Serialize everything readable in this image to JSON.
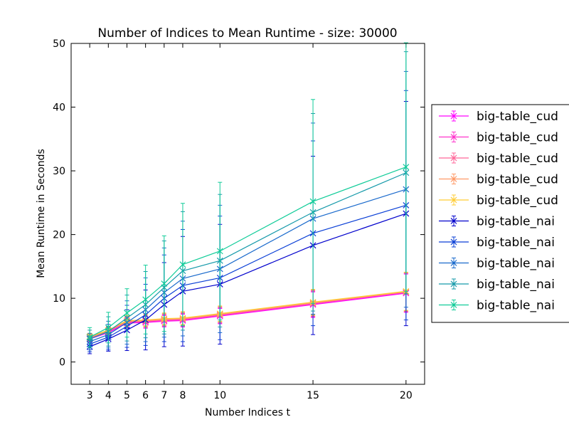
{
  "chart_data": {
    "type": "line",
    "title": "Number of Indices to Mean Runtime - size: 30000",
    "xlabel": "Number Indices t",
    "ylabel": "Mean Runtime in Seconds",
    "xlim": [
      2,
      21
    ],
    "ylim": [
      -3.5,
      50
    ],
    "x_ticks": [
      3,
      4,
      5,
      6,
      7,
      8,
      10,
      15,
      20
    ],
    "y_ticks": [
      0,
      10,
      20,
      30,
      40,
      50
    ],
    "x": [
      3,
      4,
      5,
      6,
      7,
      8,
      10,
      15,
      20
    ],
    "marker": "x",
    "grid": false,
    "legend_position": "right-outside",
    "series": [
      {
        "name": "big-table_cud",
        "color": "#ff00ff",
        "values": [
          3.6,
          4.6,
          6.1,
          6.2,
          6.4,
          6.5,
          7.2,
          9.0,
          10.8
        ],
        "err_low": [
          0.5,
          0.6,
          0.8,
          0.9,
          0.9,
          1.0,
          1.2,
          2.0,
          3.0
        ],
        "err_high": [
          0.5,
          0.6,
          0.8,
          0.9,
          0.9,
          1.0,
          1.2,
          2.0,
          3.0
        ]
      },
      {
        "name": "big-table_cud",
        "color": "#ff33cc",
        "values": [
          3.7,
          4.7,
          6.2,
          6.3,
          6.5,
          6.6,
          7.3,
          9.1,
          10.9
        ],
        "err_low": [
          0.5,
          0.6,
          0.8,
          0.9,
          0.9,
          1.0,
          1.2,
          2.0,
          3.0
        ],
        "err_high": [
          0.5,
          0.6,
          0.8,
          0.9,
          0.9,
          1.0,
          1.2,
          2.0,
          3.0
        ]
      },
      {
        "name": "big-table_cud",
        "color": "#ff6699",
        "values": [
          3.8,
          4.8,
          6.3,
          6.4,
          6.6,
          6.7,
          7.4,
          9.2,
          11.0
        ],
        "err_low": [
          0.5,
          0.6,
          0.8,
          0.9,
          0.9,
          1.0,
          1.2,
          2.0,
          3.0
        ],
        "err_high": [
          0.5,
          0.6,
          0.8,
          0.9,
          0.9,
          1.0,
          1.2,
          2.0,
          3.0
        ]
      },
      {
        "name": "big-table_cud",
        "color": "#ff9966",
        "values": [
          3.9,
          4.9,
          6.4,
          6.5,
          6.7,
          6.8,
          7.5,
          9.3,
          11.0
        ],
        "err_low": [
          0.5,
          0.6,
          0.8,
          0.9,
          0.9,
          1.0,
          1.2,
          2.0,
          3.0
        ],
        "err_high": [
          0.5,
          0.6,
          0.8,
          0.9,
          0.9,
          1.0,
          1.2,
          2.0,
          3.0
        ]
      },
      {
        "name": "big-table_cud",
        "color": "#ffcc33",
        "values": [
          4.0,
          5.0,
          6.5,
          6.6,
          6.8,
          6.9,
          7.6,
          9.4,
          11.1
        ],
        "err_low": [
          0.5,
          0.6,
          0.8,
          0.9,
          0.9,
          1.0,
          1.2,
          2.0,
          3.0
        ],
        "err_high": [
          0.5,
          0.6,
          0.8,
          0.9,
          0.9,
          1.0,
          1.2,
          2.0,
          3.0
        ]
      },
      {
        "name": "big-table_nai",
        "color": "#0000cc",
        "values": [
          2.4,
          3.6,
          5.0,
          6.6,
          9.0,
          11.1,
          12.2,
          18.3,
          23.3
        ],
        "err_low": [
          1.1,
          1.9,
          3.2,
          4.7,
          6.6,
          8.6,
          9.4,
          14.0,
          17.6
        ],
        "err_high": [
          1.1,
          1.9,
          3.2,
          4.7,
          6.6,
          8.6,
          9.4,
          14.0,
          17.6
        ]
      },
      {
        "name": "big-table_nai",
        "color": "#0a3fd6",
        "values": [
          2.8,
          3.9,
          5.6,
          7.4,
          10.0,
          12.0,
          13.2,
          20.2,
          24.6
        ],
        "err_low": [
          1.2,
          2.0,
          3.3,
          4.8,
          6.8,
          8.8,
          9.7,
          14.5,
          18.0
        ],
        "err_high": [
          1.2,
          2.0,
          3.3,
          4.8,
          6.8,
          8.8,
          9.7,
          14.5,
          18.0
        ]
      },
      {
        "name": "big-table_nai",
        "color": "#1a6acc",
        "values": [
          3.2,
          4.3,
          6.2,
          8.2,
          10.9,
          13.1,
          14.6,
          22.5,
          27.1
        ],
        "err_low": [
          1.3,
          2.1,
          3.4,
          5.0,
          7.0,
          9.0,
          10.0,
          15.0,
          18.5
        ],
        "err_high": [
          1.3,
          2.1,
          3.4,
          5.0,
          7.0,
          9.0,
          10.0,
          15.0,
          18.5
        ]
      },
      {
        "name": "big-table_nai",
        "color": "#169aaa",
        "values": [
          3.6,
          4.8,
          6.9,
          9.0,
          11.7,
          14.3,
          15.9,
          23.5,
          29.7
        ],
        "err_low": [
          1.4,
          2.3,
          3.6,
          5.2,
          7.3,
          9.3,
          10.4,
          15.5,
          19.0
        ],
        "err_high": [
          1.4,
          2.3,
          3.6,
          5.2,
          7.3,
          9.3,
          10.4,
          15.5,
          19.0
        ]
      },
      {
        "name": "big-table_nai",
        "color": "#11cc99",
        "values": [
          3.9,
          5.4,
          7.7,
          9.8,
          12.3,
          15.3,
          17.4,
          25.2,
          30.6
        ],
        "err_low": [
          1.5,
          2.4,
          3.8,
          5.4,
          7.5,
          9.6,
          10.8,
          16.0,
          19.5
        ],
        "err_high": [
          1.5,
          2.4,
          3.8,
          5.4,
          7.5,
          9.6,
          10.8,
          16.0,
          19.5
        ]
      }
    ]
  }
}
